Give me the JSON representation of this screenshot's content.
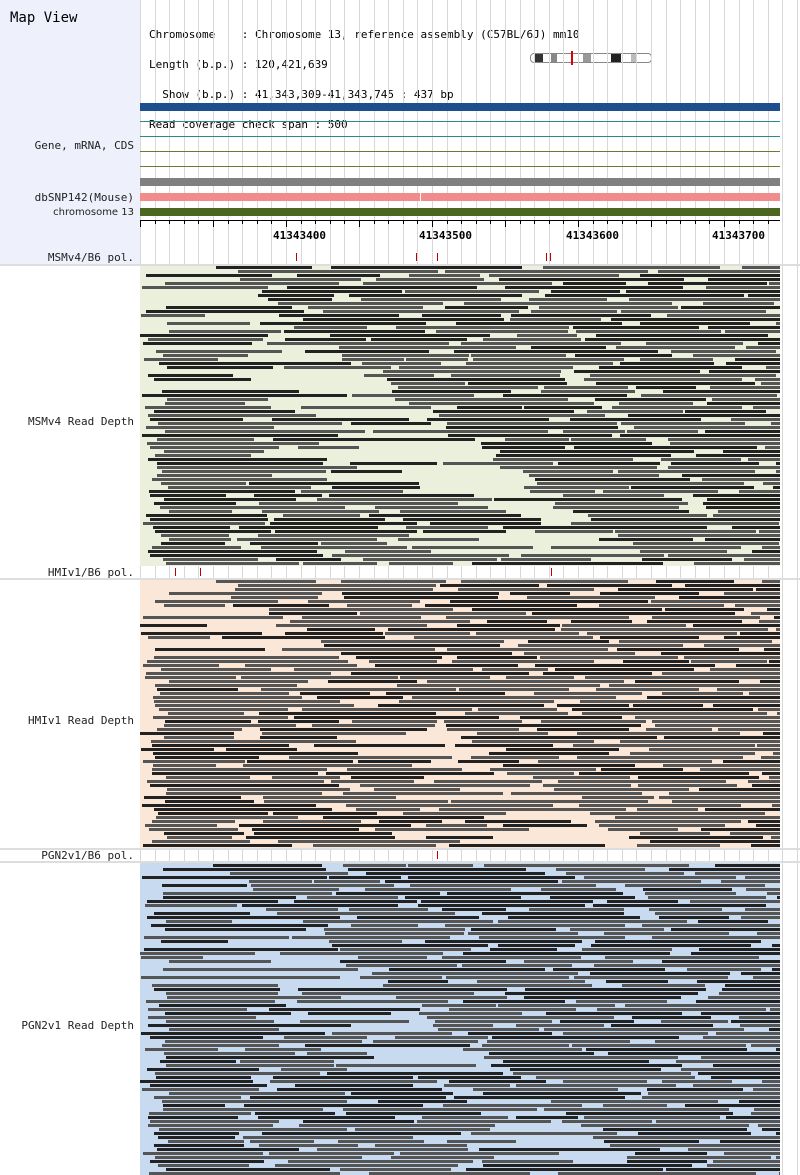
{
  "header": {
    "title": "Map View",
    "info_lines": [
      "Chromosome    : Chromosome 13, reference assembly (C57BL/6J) mm10",
      "Length (b.p.) : 120,421,639",
      "  Show (b.p.) : 41,343,309-41,343,745 : 437 bp",
      "Read coverage check span : 500"
    ]
  },
  "tracks": {
    "gene": "Gene, mRNA, CDS",
    "snp": "dbSNP142(Mouse)",
    "chrom": "chromosome 13"
  },
  "axis": {
    "ticks": [
      "41343400",
      "41343500",
      "41343600",
      "41343700"
    ]
  },
  "panels": [
    {
      "pol_label": "MSMv4/B6 pol.",
      "depth_label": "MSMv4 Read Depth",
      "color": "#eaf0dc"
    },
    {
      "pol_label": "HMIv1/B6 pol.",
      "depth_label": "HMIv1 Read Depth",
      "color": "#fbe7d8"
    },
    {
      "pol_label": "PGN2v1/B6 pol.",
      "depth_label": "PGN2v1 Read Depth",
      "color": "#c8daf0"
    }
  ],
  "colors": {
    "gene_bar": "#1f4e8c",
    "snp_bar": "#f08c8c",
    "chrom_bar": "#4b6620",
    "read_dark": "#222222",
    "read_mid": "#555555"
  }
}
